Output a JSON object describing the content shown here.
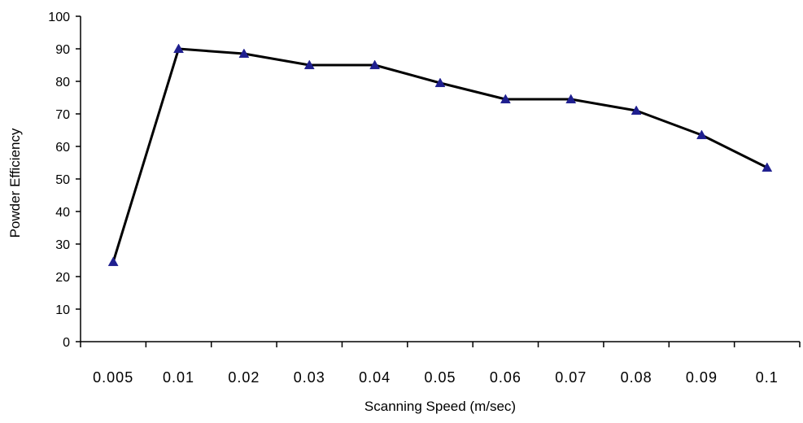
{
  "chart_data": {
    "type": "line",
    "title": "",
    "xlabel": "Scanning Speed (m/sec)",
    "ylabel": "Powder Efficiency",
    "categories": [
      "0.005",
      "0.01",
      "0.02",
      "0.03",
      "0.04",
      "0.05",
      "0.06",
      "0.07",
      "0.08",
      "0.09",
      "0.1"
    ],
    "series": [
      {
        "values": [
          24.5,
          90,
          88.5,
          85,
          85,
          79.5,
          74.5,
          74.5,
          71,
          63.5,
          53.5
        ]
      }
    ],
    "ylim": [
      0,
      100
    ],
    "yticks": [
      "0",
      "10",
      "20",
      "30",
      "40",
      "50",
      "60",
      "70",
      "80",
      "90",
      "100"
    ],
    "grid": false,
    "legend": "none",
    "line_color": "#000000",
    "marker": "triangle",
    "marker_color": "#1F1F8F"
  }
}
